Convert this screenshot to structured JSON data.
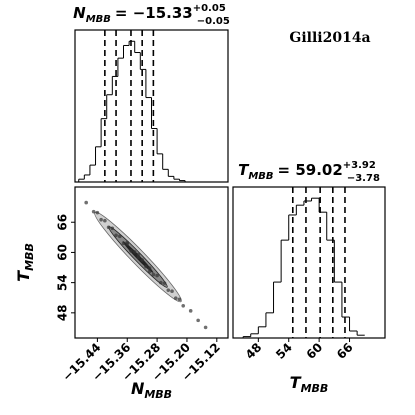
{
  "figure_label": "Gilli2014a",
  "chart_data": [
    {
      "type": "histogram",
      "title": {
        "name": "N",
        "sub": "MBB",
        "value": "= −15.33",
        "plus": "+0.05",
        "minus": "−0.05"
      },
      "bins": [
        -15.49,
        -15.475,
        -15.46,
        -15.445,
        -15.43,
        -15.415,
        -15.4,
        -15.385,
        -15.37,
        -15.355,
        -15.34,
        -15.325,
        -15.31,
        -15.295,
        -15.28,
        -15.265,
        -15.25,
        -15.235,
        -15.22,
        -15.205,
        -15.19
      ],
      "values": [
        2,
        5,
        12,
        25,
        45,
        62,
        75,
        88,
        97,
        100,
        92,
        80,
        60,
        38,
        20,
        9,
        4,
        2,
        1,
        0
      ],
      "quantiles": [
        -15.42,
        -15.39,
        -15.35,
        -15.32,
        -15.29
      ],
      "xlim": [
        -15.5,
        -15.09
      ],
      "ylim": [
        0,
        108
      ],
      "color": "#000000"
    },
    {
      "type": "scatter",
      "xlabel": "N",
      "xlabel_sub": "MBB",
      "ylabel": "T",
      "ylabel_sub": "MBB",
      "x": [
        -15.47,
        -15.45,
        -15.44,
        -15.43,
        -15.42,
        -15.41,
        -15.4,
        -15.39,
        -15.38,
        -15.37,
        -15.36,
        -15.35,
        -15.34,
        -15.33,
        -15.32,
        -15.31,
        -15.3,
        -15.29,
        -15.28,
        -15.27,
        -15.26,
        -15.25,
        -15.24,
        -15.23,
        -15.22,
        -15.21,
        -15.19,
        -15.36,
        -15.3,
        -15.33,
        -15.17,
        -15.15
      ],
      "y": [
        69.9,
        68.1,
        67.9,
        66.5,
        66.3,
        65.0,
        64.8,
        63.4,
        63.2,
        61.8,
        61.7,
        60.3,
        60.1,
        59.0,
        58.5,
        57.2,
        56.9,
        55.6,
        55.4,
        54.0,
        53.9,
        52.5,
        52.3,
        50.9,
        50.7,
        49.4,
        48.4,
        62.0,
        56.2,
        59.6,
        46.5,
        45.1
      ],
      "xlim": [
        -15.5,
        -15.09
      ],
      "ylim": [
        43,
        73
      ],
      "color": "#333333",
      "xticks": [
        {
          "value": -15.44,
          "label": "−15.44"
        },
        {
          "value": -15.36,
          "label": "−15.36"
        },
        {
          "value": -15.28,
          "label": "−15.28"
        },
        {
          "value": -15.2,
          "label": "−15.20"
        },
        {
          "value": -15.12,
          "label": "−15.12"
        }
      ],
      "yticks": [
        48,
        54,
        60,
        66
      ]
    },
    {
      "type": "histogram",
      "title": {
        "name": "T",
        "sub": "MBB",
        "value": "= 59.02",
        "plus": "+3.92",
        "minus": "−3.78"
      },
      "xlabel": "T",
      "xlabel_sub": "MBB",
      "bins": [
        45,
        46.5,
        48,
        49.5,
        51,
        52.5,
        54,
        55.5,
        57,
        58.5,
        60,
        61.5,
        63,
        64.5,
        66,
        67.5,
        69
      ],
      "values": [
        1,
        3,
        8,
        18,
        40,
        70,
        88,
        95,
        98,
        100,
        90,
        70,
        40,
        15,
        5,
        2
      ],
      "quantiles": [
        54.8,
        57.4,
        60.2,
        62.7,
        65.1
      ],
      "xlim": [
        43,
        73
      ],
      "ylim": [
        0,
        108
      ],
      "color": "#000000",
      "xticks": [
        48,
        54,
        60,
        66
      ]
    }
  ]
}
